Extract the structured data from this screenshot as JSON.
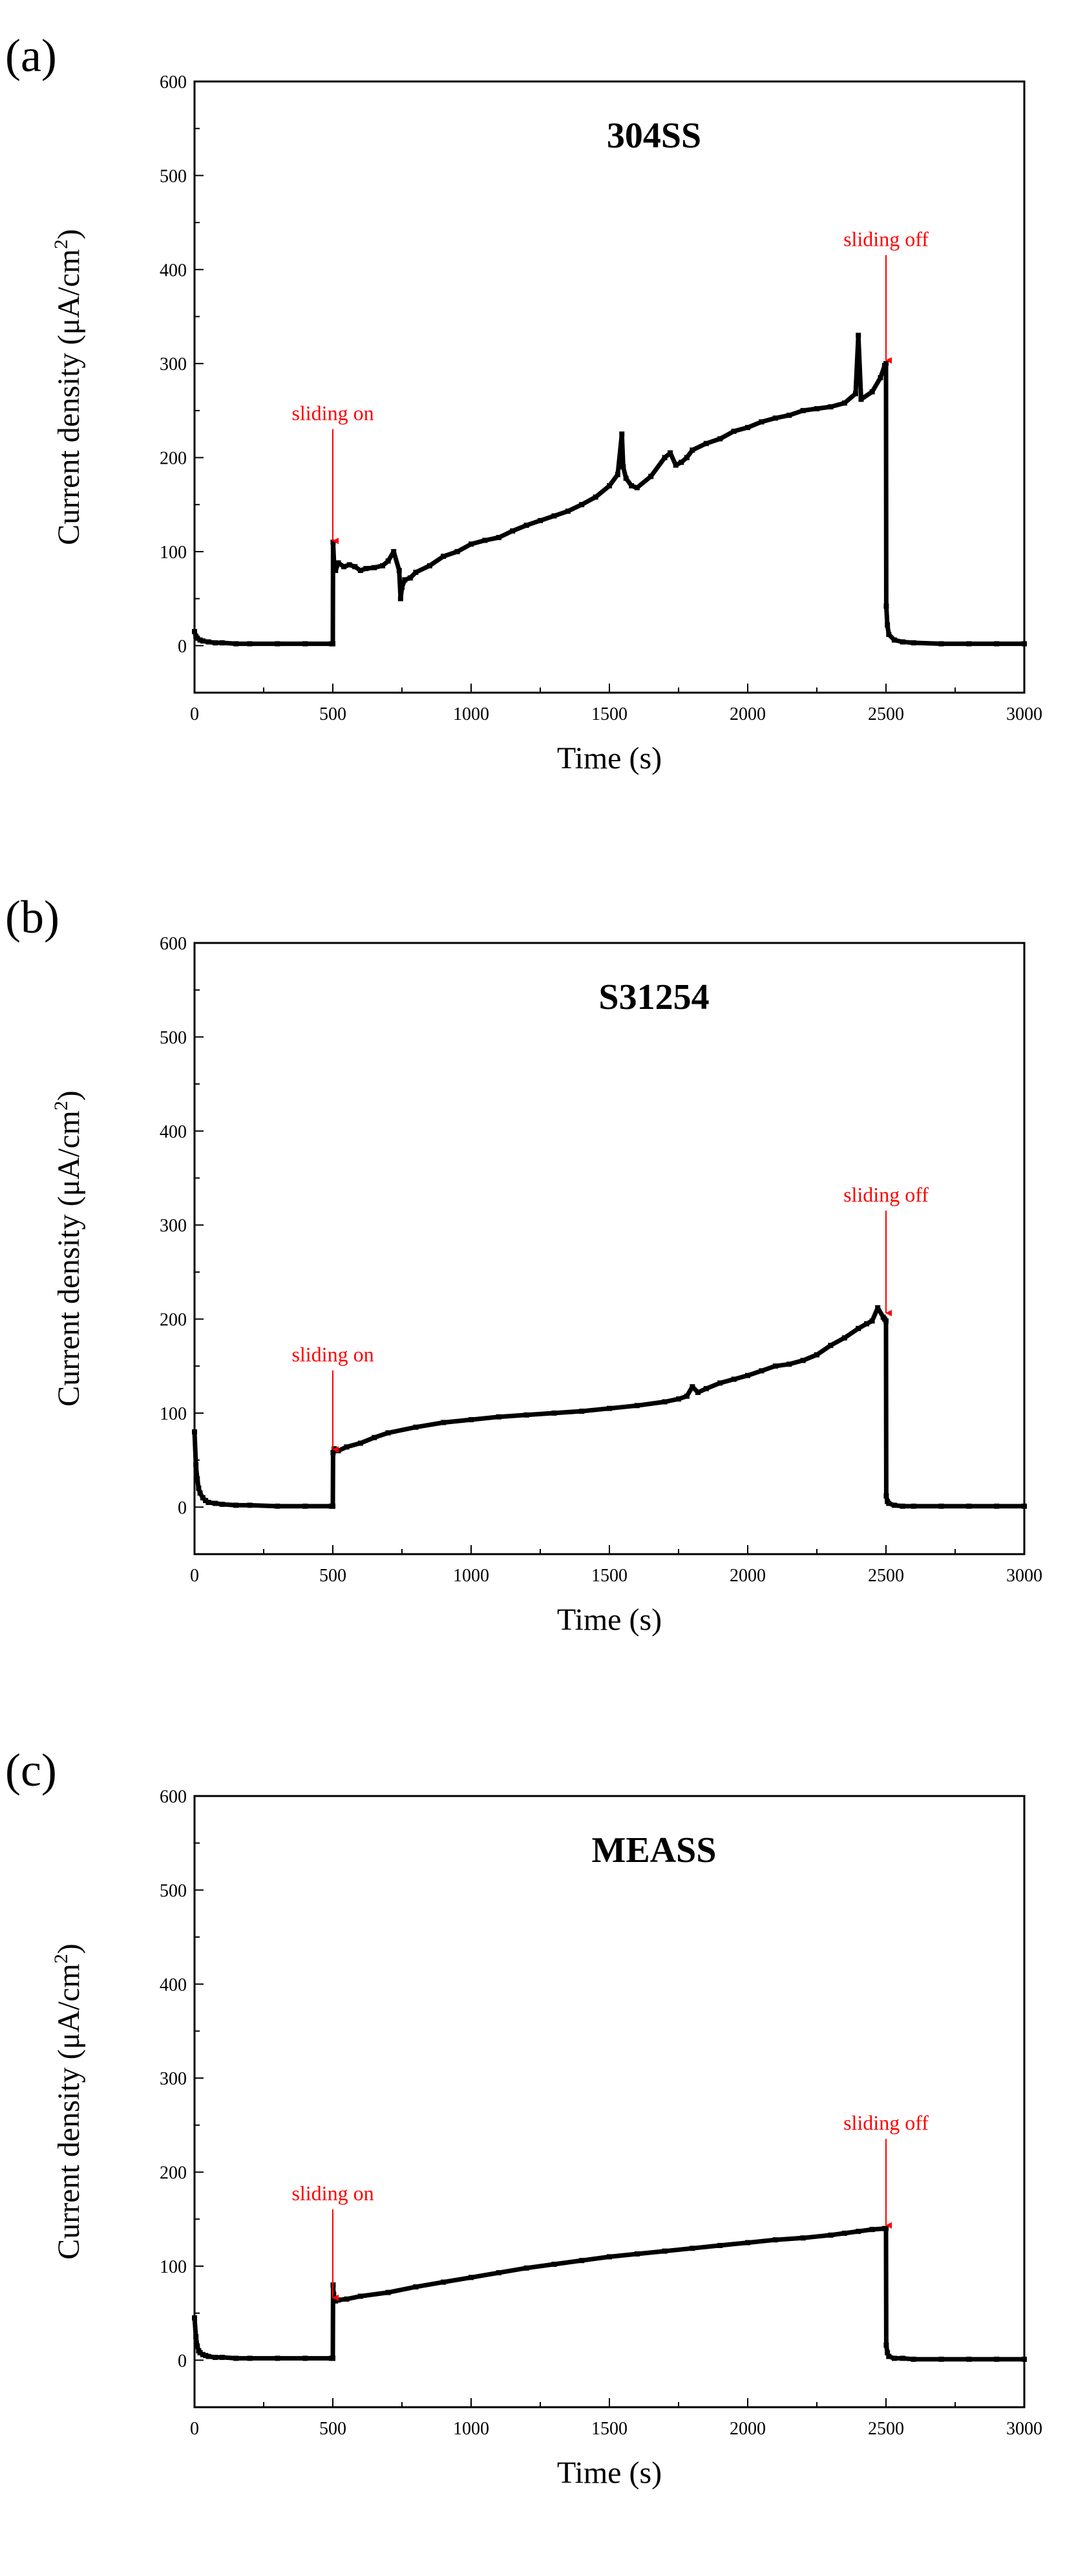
{
  "chart_data": [
    {
      "panel_label": "(a)",
      "type": "line",
      "title": "304SS",
      "xlabel": "Time (s)",
      "ylabel_main": "Current density (μA/cm",
      "ylabel_sup": "2",
      "ylabel_close": ")",
      "xlim": [
        0,
        3000
      ],
      "ylim": [
        -50,
        600
      ],
      "xticks": [
        0,
        500,
        1000,
        1500,
        2000,
        2500,
        3000
      ],
      "yticks": [
        0,
        100,
        200,
        300,
        400,
        500,
        600
      ],
      "series": [
        {
          "name": "304SS",
          "color": "#000000",
          "x": [
            0,
            5,
            10,
            20,
            30,
            50,
            75,
            100,
            150,
            200,
            300,
            400,
            495,
            500,
            501,
            505,
            510,
            520,
            540,
            560,
            580,
            600,
            620,
            650,
            680,
            700,
            720,
            740,
            745,
            750,
            760,
            780,
            800,
            850,
            900,
            950,
            1000,
            1050,
            1100,
            1150,
            1200,
            1250,
            1300,
            1350,
            1400,
            1450,
            1500,
            1530,
            1545,
            1550,
            1560,
            1580,
            1600,
            1650,
            1700,
            1720,
            1740,
            1760,
            1780,
            1800,
            1850,
            1900,
            1950,
            2000,
            2050,
            2100,
            2150,
            2200,
            2250,
            2300,
            2350,
            2390,
            2400,
            2410,
            2450,
            2480,
            2495,
            2500,
            2501,
            2505,
            2510,
            2530,
            2560,
            2600,
            2700,
            2800,
            2900,
            3000
          ],
          "y": [
            15,
            10,
            8,
            6,
            5,
            4,
            3,
            3,
            2,
            2,
            2,
            2,
            2,
            2,
            110,
            85,
            80,
            88,
            84,
            86,
            84,
            80,
            82,
            83,
            85,
            90,
            100,
            80,
            50,
            62,
            70,
            72,
            78,
            85,
            95,
            100,
            108,
            112,
            115,
            122,
            128,
            133,
            138,
            143,
            150,
            158,
            170,
            182,
            225,
            190,
            178,
            170,
            168,
            180,
            200,
            205,
            192,
            195,
            200,
            208,
            215,
            220,
            228,
            232,
            238,
            242,
            245,
            250,
            252,
            254,
            258,
            268,
            330,
            262,
            270,
            285,
            298,
            300,
            42,
            22,
            12,
            6,
            4,
            3,
            2,
            2,
            2,
            2
          ]
        }
      ],
      "annotations": [
        {
          "text": "sliding on",
          "x": 500,
          "y": 240,
          "arrow_to": 110
        },
        {
          "text": "sliding off",
          "x": 2500,
          "y": 425,
          "arrow_to": 302
        }
      ]
    },
    {
      "panel_label": "(b)",
      "type": "line",
      "title": "S31254",
      "xlabel": "Time (s)",
      "ylabel_main": "Current density (μA/cm",
      "ylabel_sup": "2",
      "ylabel_close": ")",
      "xlim": [
        0,
        3000
      ],
      "ylim": [
        -50,
        600
      ],
      "xticks": [
        0,
        500,
        1000,
        1500,
        2000,
        2500,
        3000
      ],
      "yticks": [
        0,
        100,
        200,
        300,
        400,
        500,
        600
      ],
      "series": [
        {
          "name": "S31254",
          "color": "#000000",
          "x": [
            0,
            5,
            10,
            15,
            20,
            30,
            40,
            50,
            75,
            100,
            150,
            200,
            300,
            400,
            495,
            500,
            501,
            505,
            520,
            550,
            600,
            650,
            700,
            800,
            900,
            1000,
            1100,
            1200,
            1300,
            1400,
            1500,
            1600,
            1700,
            1750,
            1780,
            1800,
            1820,
            1850,
            1900,
            1950,
            2000,
            2050,
            2100,
            2150,
            2200,
            2250,
            2300,
            2350,
            2400,
            2430,
            2450,
            2470,
            2490,
            2495,
            2500,
            2501,
            2505,
            2510,
            2530,
            2560,
            2600,
            2700,
            2800,
            2900,
            3000
          ],
          "y": [
            80,
            45,
            30,
            20,
            15,
            10,
            7,
            5,
            4,
            3,
            2,
            2,
            1,
            1,
            1,
            1,
            58,
            62,
            60,
            64,
            68,
            74,
            79,
            85,
            90,
            93,
            96,
            98,
            100,
            102,
            105,
            108,
            112,
            115,
            118,
            128,
            122,
            126,
            132,
            136,
            140,
            145,
            150,
            152,
            156,
            162,
            172,
            180,
            190,
            195,
            198,
            212,
            202,
            200,
            198,
            12,
            6,
            4,
            2,
            1,
            1,
            1,
            1,
            1,
            1
          ]
        }
      ],
      "annotations": [
        {
          "text": "sliding on",
          "x": 500,
          "y": 155,
          "arrow_to": 60
        },
        {
          "text": "sliding off",
          "x": 2500,
          "y": 325,
          "arrow_to": 205
        }
      ]
    },
    {
      "panel_label": "(c)",
      "type": "line",
      "title": "MEASS",
      "xlabel": "Time (s)",
      "ylabel_main": "Current density (μA/cm",
      "ylabel_sup": "2",
      "ylabel_close": ")",
      "xlim": [
        0,
        3000
      ],
      "ylim": [
        -50,
        600
      ],
      "xticks": [
        0,
        500,
        1000,
        1500,
        2000,
        2500,
        3000
      ],
      "yticks": [
        0,
        100,
        200,
        300,
        400,
        500,
        600
      ],
      "series": [
        {
          "name": "MEASS",
          "color": "#000000",
          "x": [
            0,
            5,
            10,
            15,
            20,
            30,
            40,
            50,
            75,
            100,
            150,
            200,
            300,
            400,
            495,
            500,
            501,
            503,
            505,
            510,
            520,
            550,
            600,
            700,
            800,
            900,
            1000,
            1100,
            1200,
            1300,
            1400,
            1500,
            1600,
            1700,
            1800,
            1900,
            2000,
            2100,
            2200,
            2300,
            2350,
            2400,
            2450,
            2495,
            2500,
            2501,
            2505,
            2510,
            2530,
            2560,
            2600,
            2700,
            2800,
            2900,
            3000
          ],
          "y": [
            45,
            25,
            15,
            10,
            8,
            6,
            5,
            4,
            3,
            3,
            2,
            2,
            2,
            2,
            2,
            2,
            80,
            70,
            65,
            63,
            64,
            65,
            68,
            72,
            78,
            83,
            88,
            93,
            98,
            102,
            106,
            110,
            113,
            116,
            119,
            122,
            125,
            128,
            130,
            133,
            135,
            137,
            139,
            140,
            140,
            16,
            8,
            4,
            2,
            2,
            1,
            1,
            1,
            1,
            1
          ]
        }
      ],
      "annotations": [
        {
          "text": "sliding on",
          "x": 500,
          "y": 170,
          "arrow_to": 65
        },
        {
          "text": "sliding off",
          "x": 2500,
          "y": 245,
          "arrow_to": 142
        }
      ]
    }
  ]
}
